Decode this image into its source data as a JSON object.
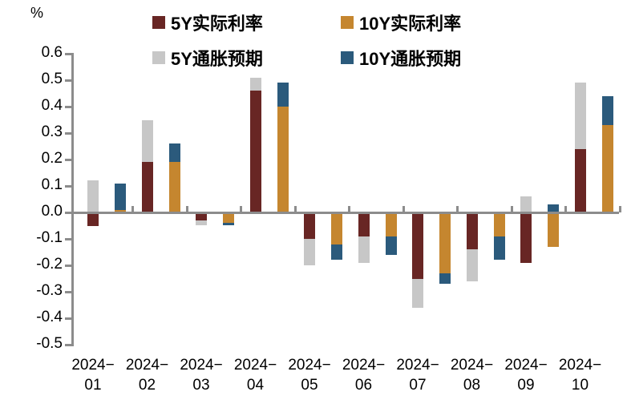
{
  "chart": {
    "unit_label": "%",
    "legend": [
      {
        "label": "5Y实际利率",
        "color": "#682624"
      },
      {
        "label": "10Y实际利率",
        "color": "#c5862f"
      },
      {
        "label": "5Y通胀预期",
        "color": "#c7c7c7"
      },
      {
        "label": "10Y通胀预期",
        "color": "#2b5a7c"
      }
    ],
    "axis_color": "#8c8c8c"
  },
  "chart_data": {
    "type": "bar",
    "stacked": true,
    "grid": false,
    "legend_position": "top",
    "unit": "%",
    "title": "",
    "xlabel": "",
    "ylabel": "%",
    "ylim": [
      -0.5,
      0.6
    ],
    "ytick_step": 0.1,
    "ytick_labels": [
      "0.6",
      "0.5",
      "0.4",
      "0.3",
      "0.2",
      "0.1",
      "0.0",
      "-0.1",
      "-0.2",
      "-0.3",
      "-0.4",
      "-0.5"
    ],
    "categories": [
      "2024-01",
      "2024-02",
      "2024-03",
      "2024-04",
      "2024-05",
      "2024-06",
      "2024-07",
      "2024-08",
      "2024-09",
      "2024-10"
    ],
    "bar_groups": [
      {
        "name": "5Y",
        "series_indexes": [
          0,
          1
        ]
      },
      {
        "name": "10Y",
        "series_indexes": [
          2,
          3
        ]
      }
    ],
    "series": [
      {
        "name": "5Y实际利率",
        "color": "#682624",
        "values": [
          -0.05,
          0.19,
          -0.03,
          0.46,
          -0.1,
          -0.09,
          -0.25,
          -0.14,
          -0.19,
          0.24
        ]
      },
      {
        "name": "5Y通胀预期",
        "color": "#c7c7c7",
        "values": [
          0.12,
          0.16,
          -0.02,
          0.05,
          -0.1,
          -0.1,
          -0.11,
          -0.12,
          0.06,
          0.25
        ]
      },
      {
        "name": "10Y实际利率",
        "color": "#c5862f",
        "values": [
          0.01,
          0.19,
          -0.04,
          0.4,
          -0.12,
          -0.09,
          -0.23,
          -0.09,
          -0.13,
          0.33
        ]
      },
      {
        "name": "10Y通胀预期",
        "color": "#2b5a7c",
        "values": [
          0.1,
          0.07,
          -0.01,
          0.09,
          -0.06,
          -0.07,
          -0.04,
          -0.09,
          0.03,
          0.11
        ]
      }
    ]
  }
}
